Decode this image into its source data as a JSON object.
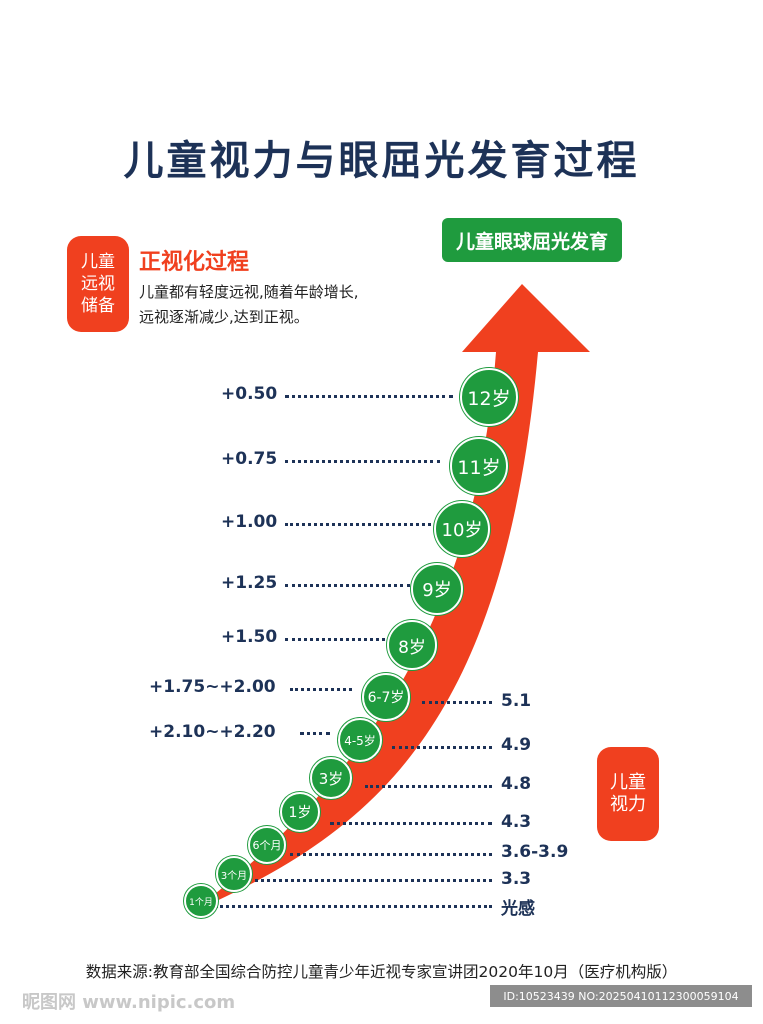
{
  "title": "儿童视力与眼屈光发育过程",
  "badge_green": "儿童眼球屈光发育",
  "left_box": [
    "儿童",
    "远视",
    "储备"
  ],
  "right_box": [
    "儿童",
    "视力"
  ],
  "positive_title": "正视化过程",
  "positive_desc": [
    "儿童都有轻度远视,随着年龄增长,",
    "远视逐渐减少,达到正视。"
  ],
  "stages": [
    {
      "age": "12岁",
      "diopter": "+0.50"
    },
    {
      "age": "11岁",
      "diopter": "+0.75"
    },
    {
      "age": "10岁",
      "diopter": "+1.00"
    },
    {
      "age": "9岁",
      "diopter": "+1.25"
    },
    {
      "age": "8岁",
      "diopter": "+1.50"
    },
    {
      "age": "6-7岁",
      "diopter": "+1.75~+2.00",
      "vision": "5.1"
    },
    {
      "age": "4-5岁",
      "diopter": "+2.10~+2.20",
      "vision": "4.9"
    },
    {
      "age": "3岁",
      "vision": "4.8"
    },
    {
      "age": "1岁",
      "vision": "4.3"
    },
    {
      "age": "6个月",
      "vision": "3.6-3.9"
    },
    {
      "age": "3个月",
      "vision": "3.3"
    },
    {
      "age": "1个月",
      "vision": "光感"
    }
  ],
  "source": "数据来源:教育部全国综合防控儿童青少年近视专家宣讲团2020年10月（医疗机构版）",
  "watermark_left": "昵图网 www.nipic.com",
  "watermark_right": "ID:10523439 NO:20250410112300059104",
  "colors": {
    "red": "#f0401f",
    "green": "#1f9b3e",
    "navy": "#1d3257"
  }
}
